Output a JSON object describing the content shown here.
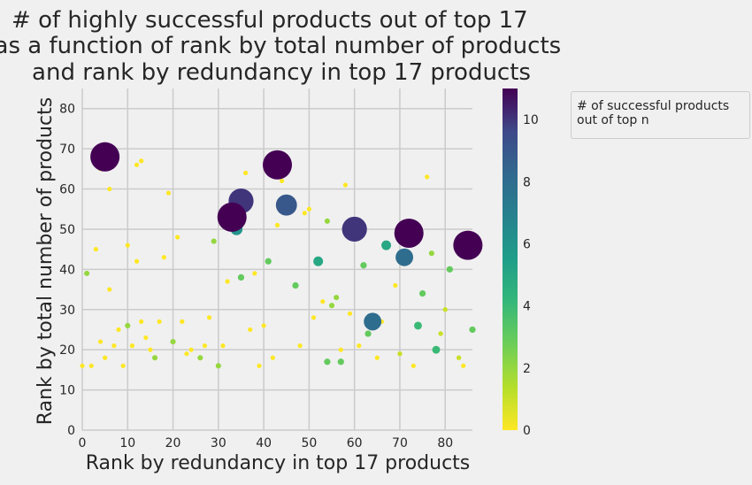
{
  "chart_data": {
    "type": "scatter",
    "title": "# of highly successful products out of top 17\nas a function of rank by total number of products\nand rank by redundancy in top 17 products",
    "xlabel": "Rank by redundancy in top 17 products",
    "ylabel": "Rank by total number of products",
    "xlim": [
      0,
      86
    ],
    "ylim": [
      0,
      85
    ],
    "xticks": [
      0,
      10,
      20,
      30,
      40,
      50,
      60,
      70,
      80
    ],
    "yticks": [
      0,
      10,
      20,
      30,
      40,
      50,
      60,
      70,
      80
    ],
    "grid": true,
    "colormap": "viridis_r",
    "colorbar": {
      "range": [
        0,
        11
      ],
      "ticks": [
        0,
        2,
        4,
        6,
        8,
        10
      ]
    },
    "legend": {
      "title": "# of successful products\n out of top n",
      "placement": "outside-right"
    },
    "points": [
      {
        "x": 5,
        "y": 68,
        "v": 11
      },
      {
        "x": 33,
        "y": 53,
        "v": 11
      },
      {
        "x": 43,
        "y": 66,
        "v": 11
      },
      {
        "x": 72,
        "y": 49,
        "v": 11
      },
      {
        "x": 85,
        "y": 46,
        "v": 11
      },
      {
        "x": 60,
        "y": 50,
        "v": 10
      },
      {
        "x": 35,
        "y": 57,
        "v": 10
      },
      {
        "x": 45,
        "y": 56,
        "v": 9
      },
      {
        "x": 71,
        "y": 43,
        "v": 8
      },
      {
        "x": 64,
        "y": 27,
        "v": 8
      },
      {
        "x": 34,
        "y": 50,
        "v": 6
      },
      {
        "x": 52,
        "y": 42,
        "v": 5
      },
      {
        "x": 67,
        "y": 46,
        "v": 5
      },
      {
        "x": 74,
        "y": 26,
        "v": 4
      },
      {
        "x": 78,
        "y": 20,
        "v": 4
      },
      {
        "x": 75,
        "y": 34,
        "v": 3
      },
      {
        "x": 81,
        "y": 40,
        "v": 3
      },
      {
        "x": 54,
        "y": 17,
        "v": 3
      },
      {
        "x": 57,
        "y": 17,
        "v": 3
      },
      {
        "x": 63,
        "y": 24,
        "v": 3
      },
      {
        "x": 86,
        "y": 25,
        "v": 3
      },
      {
        "x": 62,
        "y": 41,
        "v": 3
      },
      {
        "x": 47,
        "y": 36,
        "v": 3
      },
      {
        "x": 35,
        "y": 38,
        "v": 3
      },
      {
        "x": 41,
        "y": 42,
        "v": 3
      },
      {
        "x": 20,
        "y": 22,
        "v": 2
      },
      {
        "x": 56,
        "y": 33,
        "v": 2
      },
      {
        "x": 54,
        "y": 52,
        "v": 2
      },
      {
        "x": 29,
        "y": 47,
        "v": 2
      },
      {
        "x": 1,
        "y": 39,
        "v": 2
      },
      {
        "x": 16,
        "y": 18,
        "v": 2
      },
      {
        "x": 26,
        "y": 18,
        "v": 2
      },
      {
        "x": 30,
        "y": 16,
        "v": 2
      },
      {
        "x": 10,
        "y": 26,
        "v": 2
      },
      {
        "x": 55,
        "y": 31,
        "v": 2
      },
      {
        "x": 77,
        "y": 44,
        "v": 2
      },
      {
        "x": 80,
        "y": 30,
        "v": 1
      },
      {
        "x": 79,
        "y": 24,
        "v": 1
      },
      {
        "x": 70,
        "y": 19,
        "v": 1
      },
      {
        "x": 83,
        "y": 18,
        "v": 1
      },
      {
        "x": 4,
        "y": 65,
        "v": 0
      },
      {
        "x": 6,
        "y": 60,
        "v": 0
      },
      {
        "x": 12,
        "y": 66,
        "v": 0
      },
      {
        "x": 13,
        "y": 67,
        "v": 0
      },
      {
        "x": 19,
        "y": 59,
        "v": 0
      },
      {
        "x": 3,
        "y": 45,
        "v": 0
      },
      {
        "x": 10,
        "y": 46,
        "v": 0
      },
      {
        "x": 12,
        "y": 42,
        "v": 0
      },
      {
        "x": 21,
        "y": 48,
        "v": 0
      },
      {
        "x": 18,
        "y": 43,
        "v": 0
      },
      {
        "x": 6,
        "y": 35,
        "v": 0
      },
      {
        "x": 36,
        "y": 64,
        "v": 0
      },
      {
        "x": 44,
        "y": 62,
        "v": 0
      },
      {
        "x": 58,
        "y": 61,
        "v": 0
      },
      {
        "x": 76,
        "y": 63,
        "v": 0
      },
      {
        "x": 43,
        "y": 51,
        "v": 0
      },
      {
        "x": 49,
        "y": 54,
        "v": 0
      },
      {
        "x": 50,
        "y": 55,
        "v": 0
      },
      {
        "x": 32,
        "y": 37,
        "v": 0
      },
      {
        "x": 38,
        "y": 39,
        "v": 0
      },
      {
        "x": 51,
        "y": 28,
        "v": 0
      },
      {
        "x": 53,
        "y": 32,
        "v": 0
      },
      {
        "x": 59,
        "y": 29,
        "v": 0
      },
      {
        "x": 66,
        "y": 27,
        "v": 0
      },
      {
        "x": 69,
        "y": 36,
        "v": 0
      },
      {
        "x": 8,
        "y": 25,
        "v": 0
      },
      {
        "x": 13,
        "y": 27,
        "v": 0
      },
      {
        "x": 14,
        "y": 23,
        "v": 0
      },
      {
        "x": 17,
        "y": 27,
        "v": 0
      },
      {
        "x": 22,
        "y": 27,
        "v": 0
      },
      {
        "x": 28,
        "y": 28,
        "v": 0
      },
      {
        "x": 37,
        "y": 25,
        "v": 0
      },
      {
        "x": 40,
        "y": 26,
        "v": 0
      },
      {
        "x": 4,
        "y": 22,
        "v": 0
      },
      {
        "x": 7,
        "y": 21,
        "v": 0
      },
      {
        "x": 11,
        "y": 21,
        "v": 0
      },
      {
        "x": 15,
        "y": 20,
        "v": 0
      },
      {
        "x": 23,
        "y": 19,
        "v": 0
      },
      {
        "x": 24,
        "y": 20,
        "v": 0
      },
      {
        "x": 27,
        "y": 21,
        "v": 0
      },
      {
        "x": 31,
        "y": 21,
        "v": 0
      },
      {
        "x": 48,
        "y": 21,
        "v": 0
      },
      {
        "x": 57,
        "y": 20,
        "v": 0
      },
      {
        "x": 61,
        "y": 21,
        "v": 0
      },
      {
        "x": 5,
        "y": 18,
        "v": 0
      },
      {
        "x": 2,
        "y": 16,
        "v": 0
      },
      {
        "x": 9,
        "y": 16,
        "v": 0
      },
      {
        "x": 39,
        "y": 16,
        "v": 0
      },
      {
        "x": 42,
        "y": 18,
        "v": 0
      },
      {
        "x": 65,
        "y": 18,
        "v": 0
      },
      {
        "x": 73,
        "y": 16,
        "v": 0
      },
      {
        "x": 84,
        "y": 16,
        "v": 0
      },
      {
        "x": 0,
        "y": 16,
        "v": 0
      }
    ]
  }
}
